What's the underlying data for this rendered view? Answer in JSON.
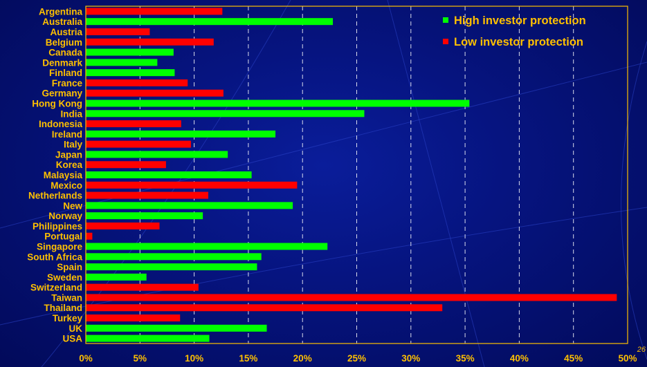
{
  "page_number": "26",
  "chart_data": {
    "type": "bar",
    "orientation": "horizontal",
    "title": "",
    "xlabel": "",
    "ylabel": "",
    "xlim": [
      0,
      50
    ],
    "x_ticks": [
      "0%",
      "5%",
      "10%",
      "15%",
      "20%",
      "25%",
      "30%",
      "35%",
      "40%",
      "45%",
      "50%"
    ],
    "x_tick_values": [
      0,
      5,
      10,
      15,
      20,
      25,
      30,
      35,
      40,
      45,
      50
    ],
    "grid": "vertical dashed",
    "legend_position": "top-right",
    "series": [
      {
        "key": "high",
        "name": "High investor protection",
        "color": "#00ff00"
      },
      {
        "key": "low",
        "name": "Low investor protection",
        "color": "#ff0000"
      }
    ],
    "categories": [
      "Argentina",
      "Australia",
      "Austria",
      "Belgium",
      "Canada",
      "Denmark",
      "Finland",
      "France",
      "Germany",
      "Hong Kong",
      "India",
      "Indonesia",
      "Ireland",
      "Italy",
      "Japan",
      "Korea",
      "Malaysia",
      "Mexico",
      "Netherlands",
      "New",
      "Norway",
      "Philippines",
      "Portugal",
      "Singapore",
      "South Africa",
      "Spain",
      "Sweden",
      "Switzerland",
      "Taiwan",
      "Thailand",
      "Turkey",
      "UK",
      "USA"
    ],
    "values": [
      12.6,
      22.8,
      5.9,
      11.8,
      8.1,
      6.6,
      8.2,
      9.4,
      12.7,
      35.4,
      25.7,
      8.8,
      17.5,
      9.7,
      13.1,
      7.4,
      15.3,
      19.5,
      11.3,
      19.1,
      10.8,
      6.8,
      0.6,
      22.3,
      16.2,
      15.8,
      5.6,
      10.4,
      49.0,
      32.9,
      8.7,
      16.7,
      11.4
    ],
    "groups": [
      "low",
      "high",
      "low",
      "low",
      "high",
      "high",
      "high",
      "low",
      "low",
      "high",
      "high",
      "low",
      "high",
      "low",
      "high",
      "low",
      "high",
      "low",
      "low",
      "high",
      "high",
      "low",
      "low",
      "high",
      "high",
      "high",
      "high",
      "low",
      "low",
      "low",
      "low",
      "high",
      "high"
    ]
  }
}
